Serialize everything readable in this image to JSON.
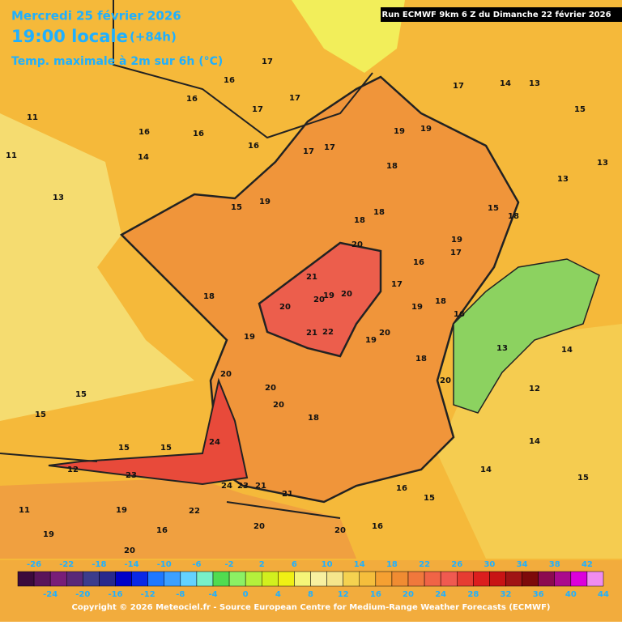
{
  "header": {
    "date": "Mercredi 25 février 2026",
    "time": "19:00 locale",
    "lead": "(+84h)",
    "field": "Temp. maximale à 2m sur 6h (°C)",
    "run": "Run ECMWF 9km 6 Z du Dimanche 22 février 2026"
  },
  "map_labels": [
    16,
    17,
    17,
    16,
    17,
    16,
    16,
    16,
    14,
    11,
    11,
    13,
    15,
    19,
    17,
    17,
    19,
    19,
    18,
    17,
    14,
    13,
    15,
    13,
    13,
    18,
    15,
    18,
    18,
    20,
    19,
    17,
    16,
    21,
    19,
    20,
    20,
    20,
    21,
    22,
    18,
    19,
    19,
    20,
    20,
    20,
    20,
    18,
    17,
    19,
    18,
    16,
    18,
    20,
    13,
    12,
    14,
    14,
    15,
    14,
    16,
    15,
    16,
    15,
    15,
    15,
    15,
    24,
    23,
    24,
    23,
    21,
    21,
    22,
    19,
    16,
    20,
    20,
    19,
    20,
    11,
    12
  ],
  "legend": {
    "colors": [
      "#3c0a3c",
      "#5a145a",
      "#781e78",
      "#5a2878",
      "#3c3c8c",
      "#28288c",
      "#0000c8",
      "#0a28e6",
      "#1e78ff",
      "#3ca0ff",
      "#64d2ff",
      "#78f0c8",
      "#50dc50",
      "#8cf064",
      "#b4f03c",
      "#d2f01e",
      "#f0f014",
      "#f5f578",
      "#f8f0a0",
      "#f5e68c",
      "#f5d250",
      "#f5be3c",
      "#f5a032",
      "#f08c32",
      "#f0783c",
      "#f06446",
      "#f05a50",
      "#e63c32",
      "#dc1e1e",
      "#c81414",
      "#a01414",
      "#7d0a0a",
      "#8c0a50",
      "#aa0a8c",
      "#dc00dc",
      "#f08cf0"
    ],
    "ticks_top": [
      -26,
      -22,
      -18,
      -14,
      -10,
      -6,
      -2,
      2,
      6,
      10,
      14,
      18,
      22,
      26,
      30,
      34,
      38,
      42
    ],
    "ticks_bottom": [
      -24,
      -20,
      -16,
      -12,
      -8,
      -4,
      0,
      4,
      8,
      12,
      16,
      20,
      24,
      28,
      32,
      36,
      40,
      44
    ]
  },
  "footer": "Copyright © 2026 Meteociel.fr - Source European Centre for Medium-Range Weather Forecasts (ECMWF)"
}
